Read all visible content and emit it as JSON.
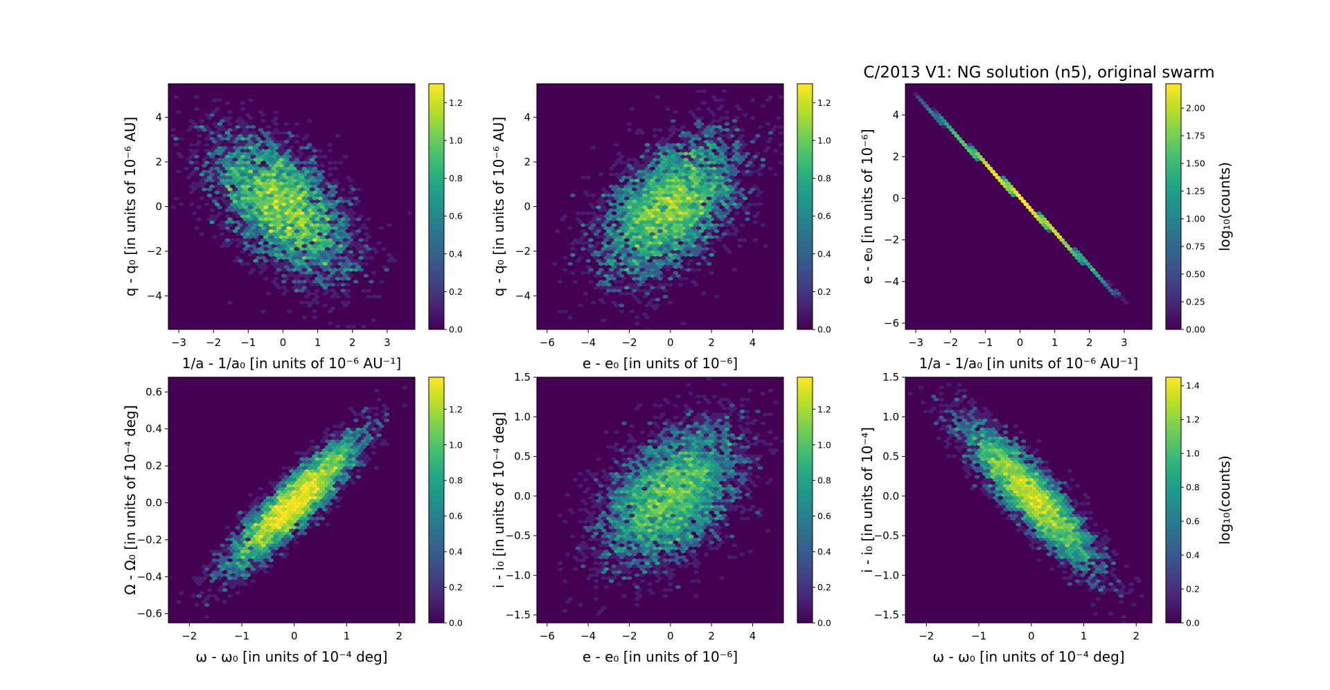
{
  "figure": {
    "title": "C/2013 V1: NG solution (n5), original swarm"
  },
  "colors": {
    "background": "#440154",
    "viridis": [
      "#440154",
      "#482475",
      "#414487",
      "#355f8d",
      "#2a788e",
      "#21918c",
      "#22a884",
      "#44bf70",
      "#7ad151",
      "#bddf26",
      "#fde725"
    ]
  },
  "chart_data": [
    {
      "type": "heatmap",
      "name": "q-vs-1a",
      "xlabel": "1/a - 1/a₀ [in units of 10⁻⁶ AU⁻¹]",
      "ylabel": "q - q₀ [in units of 10⁻⁶ AU]",
      "xlim": [
        -3.3,
        3.8
      ],
      "ylim": [
        -5.5,
        5.5
      ],
      "xticks": [
        -3,
        -2,
        -1,
        0,
        1,
        2,
        3
      ],
      "yticks": [
        -4,
        -2,
        0,
        2,
        4
      ],
      "cbar_range": [
        0,
        1.3
      ],
      "cbar_ticks": [
        0.0,
        0.2,
        0.4,
        0.6,
        0.8,
        1.0,
        1.2
      ],
      "cbar_label": "",
      "distribution": {
        "cx": 0,
        "cy": 0,
        "sx": 1.0,
        "sy": 1.6,
        "rho": -0.55,
        "n": 5000
      }
    },
    {
      "type": "heatmap",
      "name": "q-vs-e",
      "xlabel": "e - e₀ [in units of 10⁻⁶]",
      "ylabel": "q - q₀ [in units of 10⁻⁶ AU]",
      "xlim": [
        -6.5,
        5.5
      ],
      "ylim": [
        -5.5,
        5.5
      ],
      "xticks": [
        -6,
        -4,
        -2,
        0,
        2,
        4
      ],
      "yticks": [
        -4,
        -2,
        0,
        2,
        4
      ],
      "cbar_range": [
        0,
        1.3
      ],
      "cbar_ticks": [
        0.0,
        0.2,
        0.4,
        0.6,
        0.8,
        1.0,
        1.2
      ],
      "cbar_label": "",
      "distribution": {
        "cx": 0,
        "cy": 0,
        "sx": 1.7,
        "sy": 1.6,
        "rho": 0.5,
        "n": 5000
      }
    },
    {
      "type": "heatmap",
      "name": "e-vs-1a",
      "xlabel": "1/a - 1/a₀ [in units of 10⁻⁶ AU⁻¹]",
      "ylabel": "e - e₀ [in units of 10⁻⁶]",
      "xlim": [
        -3.3,
        3.8
      ],
      "ylim": [
        -6.3,
        5.5
      ],
      "xticks": [
        -3,
        -2,
        -1,
        0,
        1,
        2,
        3
      ],
      "yticks": [
        -6,
        -4,
        -2,
        0,
        2,
        4
      ],
      "cbar_range": [
        0,
        2.22
      ],
      "cbar_ticks": [
        0.0,
        0.25,
        0.5,
        0.75,
        1.0,
        1.25,
        1.5,
        1.75,
        2.0
      ],
      "cbar_tick_labels": [
        "0.00",
        "0.25",
        "0.50",
        "0.75",
        "1.00",
        "1.25",
        "1.50",
        "1.75",
        "2.00"
      ],
      "cbar_label": "log₁₀(counts)",
      "line": {
        "slope": -1.65,
        "x_range": [
          -3.1,
          3.0
        ]
      },
      "distribution": {
        "cx": 0,
        "sx": 1.0,
        "n": 5000
      }
    },
    {
      "type": "heatmap",
      "name": "Omega-vs-omega",
      "xlabel": "ω - ω₀ [in units of 10⁻⁴ deg]",
      "ylabel": "Ω - Ω₀ [in units of 10⁻⁴ deg]",
      "xlim": [
        -2.4,
        2.3
      ],
      "ylim": [
        -0.65,
        0.68
      ],
      "xticks": [
        -2,
        -1,
        0,
        1,
        2
      ],
      "yticks": [
        -0.6,
        -0.4,
        -0.2,
        0.0,
        0.2,
        0.4,
        0.6
      ],
      "ytick_labels": [
        "−0.6",
        "−0.4",
        "−0.2",
        "0.0",
        "0.2",
        "0.4",
        "0.6"
      ],
      "cbar_range": [
        0,
        1.38
      ],
      "cbar_ticks": [
        0.0,
        0.2,
        0.4,
        0.6,
        0.8,
        1.0,
        1.2
      ],
      "cbar_label": "",
      "distribution": {
        "cx": 0,
        "cy": 0,
        "sx": 0.62,
        "sy": 0.18,
        "rho": 0.9,
        "n": 5000
      }
    },
    {
      "type": "heatmap",
      "name": "i-vs-e",
      "xlabel": "e - e₀ [in units of 10⁻⁶]",
      "ylabel": "i - i₀ [in units of 10⁻⁴ deg]",
      "xlim": [
        -6.5,
        5.5
      ],
      "ylim": [
        -1.6,
        1.5
      ],
      "xticks": [
        -6,
        -4,
        -2,
        0,
        2,
        4
      ],
      "yticks": [
        -1.5,
        -1.0,
        -0.5,
        0.0,
        0.5,
        1.0,
        1.5
      ],
      "ytick_labels": [
        "−1.5",
        "−1.0",
        "−0.5",
        "0.0",
        "0.5",
        "1.0",
        "1.5"
      ],
      "cbar_range": [
        0,
        1.38
      ],
      "cbar_ticks": [
        0.0,
        0.2,
        0.4,
        0.6,
        0.8,
        1.0,
        1.2
      ],
      "cbar_label": "",
      "distribution": {
        "cx": 0,
        "cy": 0,
        "sx": 1.7,
        "sy": 0.45,
        "rho": 0.45,
        "n": 5000
      }
    },
    {
      "type": "heatmap",
      "name": "i-vs-omega",
      "xlabel": "ω - ω₀ [in units of 10⁻⁴ deg]",
      "ylabel": "i - i₀ [in units of 10⁻⁴]",
      "xlim": [
        -2.4,
        2.3
      ],
      "ylim": [
        -1.6,
        1.5
      ],
      "xticks": [
        -2,
        -1,
        0,
        1,
        2
      ],
      "yticks": [
        -1.5,
        -1.0,
        -0.5,
        0.0,
        0.5,
        1.0,
        1.5
      ],
      "ytick_labels": [
        "−1.5",
        "−1.0",
        "−0.5",
        "0.0",
        "0.5",
        "1.0",
        "1.5"
      ],
      "cbar_range": [
        0,
        1.45
      ],
      "cbar_ticks": [
        0.0,
        0.2,
        0.4,
        0.6,
        0.8,
        1.0,
        1.2,
        1.4
      ],
      "cbar_label": "log₁₀(counts)",
      "distribution": {
        "cx": 0,
        "cy": 0,
        "sx": 0.62,
        "sy": 0.45,
        "rho": -0.88,
        "n": 5000
      }
    }
  ]
}
